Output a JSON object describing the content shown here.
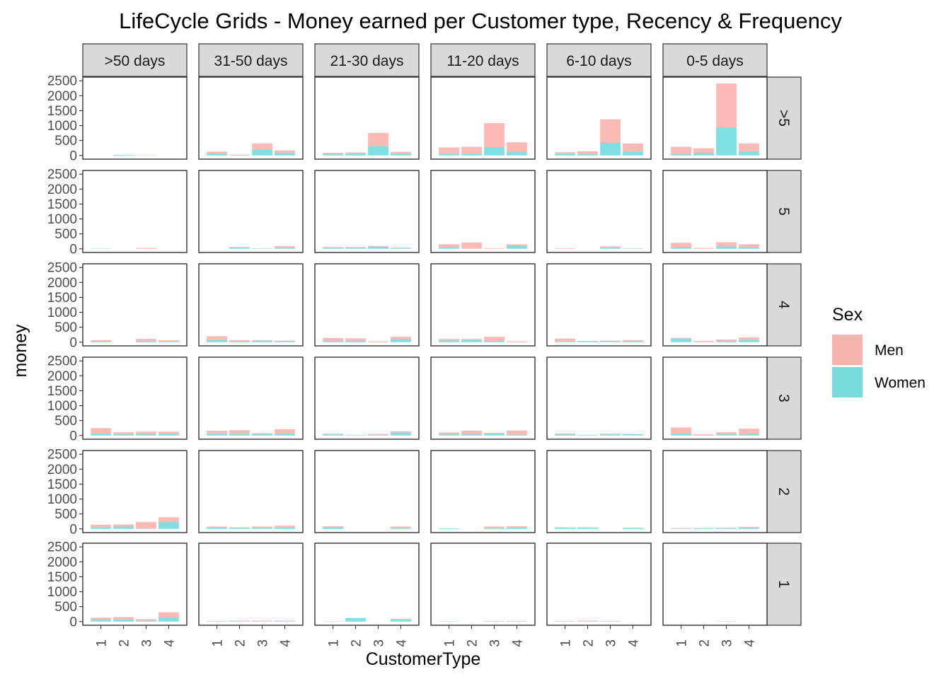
{
  "chart_data": {
    "type": "bar",
    "stacked": true,
    "title": "LifeCycle Grids - Money earned per Customer type, Recency & Frequency",
    "xlabel": "CustomerType",
    "ylabel": "money",
    "ylim": [
      0,
      2500
    ],
    "yticks": [
      "0",
      "500",
      "1000",
      "1500",
      "2000",
      "2500"
    ],
    "categories": [
      "1",
      "2",
      "3",
      "4"
    ],
    "column_facets": [
      ">50 days",
      "31-50 days",
      "21-30 days",
      "11-20 days",
      "6-10 days",
      "0-5 days"
    ],
    "row_facets": [
      ">5",
      "5",
      "4",
      "3",
      "2",
      "1"
    ],
    "legend": {
      "title": "Sex",
      "position": "right",
      "entries": [
        {
          "label": "Men",
          "color": "#F8766D"
        },
        {
          "label": "Women",
          "color": "#00BFC4"
        }
      ]
    },
    "bar_alpha": 0.5,
    "grid": false,
    "panels": [
      [
        {
          "men": [
            0,
            0,
            10,
            0
          ],
          "women": [
            0,
            20,
            0,
            0
          ]
        },
        {
          "men": [
            70,
            20,
            210,
            80
          ],
          "women": [
            60,
            10,
            190,
            90
          ]
        },
        {
          "men": [
            50,
            40,
            440,
            60
          ],
          "women": [
            40,
            60,
            310,
            60
          ]
        },
        {
          "men": [
            220,
            230,
            800,
            330
          ],
          "women": [
            50,
            60,
            280,
            110
          ]
        },
        {
          "men": [
            50,
            100,
            790,
            270
          ],
          "women": [
            60,
            40,
            420,
            130
          ]
        },
        {
          "men": [
            250,
            150,
            1480,
            270
          ],
          "women": [
            40,
            90,
            930,
            130
          ]
        }
      ],
      [
        {
          "men": [
            0,
            0,
            30,
            0
          ],
          "women": [
            10,
            0,
            0,
            0
          ]
        },
        {
          "men": [
            0,
            20,
            10,
            60
          ],
          "women": [
            0,
            40,
            10,
            30
          ]
        },
        {
          "men": [
            30,
            30,
            20,
            20
          ],
          "women": [
            30,
            30,
            70,
            20
          ]
        },
        {
          "men": [
            100,
            210,
            20,
            60
          ],
          "women": [
            50,
            0,
            0,
            90
          ]
        },
        {
          "men": [
            20,
            0,
            40,
            10
          ],
          "women": [
            0,
            0,
            40,
            10
          ]
        },
        {
          "men": [
            160,
            30,
            140,
            100
          ],
          "women": [
            40,
            0,
            80,
            50
          ]
        }
      ],
      [
        {
          "men": [
            50,
            0,
            70,
            40
          ],
          "women": [
            20,
            0,
            40,
            20
          ]
        },
        {
          "men": [
            130,
            40,
            20,
            20
          ],
          "women": [
            70,
            30,
            50,
            30
          ]
        },
        {
          "men": [
            100,
            80,
            30,
            80
          ],
          "women": [
            40,
            50,
            0,
            100
          ]
        },
        {
          "men": [
            50,
            40,
            140,
            30
          ],
          "women": [
            60,
            70,
            40,
            0
          ]
        },
        {
          "men": [
            100,
            0,
            20,
            30
          ],
          "women": [
            20,
            40,
            30,
            40
          ]
        },
        {
          "men": [
            20,
            40,
            60,
            90
          ],
          "women": [
            120,
            0,
            30,
            70
          ]
        }
      ],
      [
        {
          "men": [
            190,
            60,
            80,
            70
          ],
          "women": [
            60,
            50,
            50,
            60
          ]
        },
        {
          "men": [
            100,
            120,
            30,
            150
          ],
          "women": [
            60,
            60,
            50,
            60
          ]
        },
        {
          "men": [
            20,
            10,
            30,
            40
          ],
          "women": [
            40,
            10,
            20,
            100
          ]
        },
        {
          "men": [
            60,
            120,
            30,
            140
          ],
          "women": [
            40,
            40,
            60,
            30
          ]
        },
        {
          "men": [
            30,
            0,
            20,
            10
          ],
          "women": [
            40,
            20,
            40,
            40
          ]
        },
        {
          "men": [
            210,
            20,
            60,
            190
          ],
          "women": [
            60,
            20,
            50,
            40
          ]
        }
      ],
      [
        {
          "men": [
            80,
            70,
            220,
            170
          ],
          "women": [
            60,
            80,
            10,
            220
          ]
        },
        {
          "men": [
            40,
            20,
            50,
            60
          ],
          "women": [
            40,
            30,
            30,
            50
          ]
        },
        {
          "men": [
            30,
            0,
            0,
            60
          ],
          "women": [
            60,
            0,
            0,
            20
          ]
        },
        {
          "men": [
            0,
            0,
            60,
            50
          ],
          "women": [
            20,
            0,
            20,
            40
          ]
        },
        {
          "men": [
            10,
            10,
            0,
            10
          ],
          "women": [
            40,
            40,
            0,
            30
          ]
        },
        {
          "men": [
            20,
            10,
            20,
            40
          ],
          "women": [
            10,
            20,
            20,
            30
          ]
        }
      ],
      [
        {
          "men": [
            70,
            80,
            50,
            180
          ],
          "women": [
            60,
            70,
            30,
            130
          ]
        },
        {
          "men": [
            10,
            10,
            10,
            10
          ],
          "women": [
            10,
            20,
            20,
            20
          ]
        },
        {
          "men": [
            10,
            0,
            0,
            20
          ],
          "women": [
            0,
            120,
            0,
            70
          ]
        },
        {
          "men": [
            0,
            0,
            10,
            10
          ],
          "women": [
            10,
            0,
            10,
            10
          ]
        },
        {
          "men": [
            10,
            10,
            10,
            0
          ],
          "women": [
            10,
            20,
            10,
            0
          ]
        },
        {
          "men": [
            0,
            0,
            10,
            0
          ],
          "women": [
            0,
            0,
            0,
            0
          ]
        }
      ]
    ]
  }
}
